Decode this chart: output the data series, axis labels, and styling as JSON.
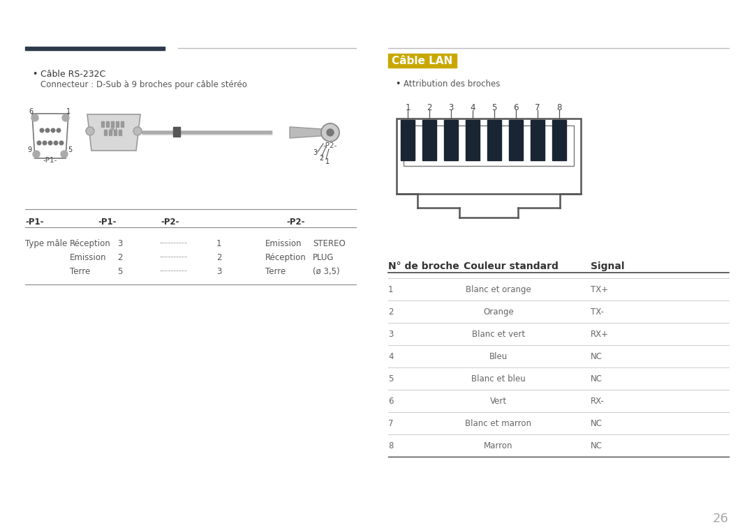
{
  "bg_color": "#ffffff",
  "page_number": "26",
  "top_bar_left_color": "#2d3a4a",
  "top_bar_right_color": "#cccccc",
  "left_section": {
    "bullet_title": "Câble RS-232C",
    "bullet_subtitle": "Connecteur : D-Sub à 9 broches pour câble stéréo",
    "table_header": [
      "-P1-",
      "-P1-",
      "-P2-",
      "-P2-"
    ],
    "table_rows": [
      [
        "Type mâle",
        "Réception",
        "3",
        "----------",
        "1",
        "Emission",
        "STEREO"
      ],
      [
        "",
        "Emission",
        "2",
        "----------",
        "2",
        "Réception",
        "PLUG"
      ],
      [
        "",
        "Terre",
        "5",
        "----------",
        "3",
        "Terre",
        "(ø 3,5)"
      ]
    ]
  },
  "right_section": {
    "title": "Câble LAN",
    "title_bg": "#c8a800",
    "title_color": "#ffffff",
    "bullet": "Attribution des broches",
    "pin_numbers": [
      "1",
      "2",
      "3",
      "4",
      "5",
      "6",
      "7",
      "8"
    ],
    "table_col_headers": [
      "N° de broche",
      "Couleur standard",
      "Signal"
    ],
    "table_rows": [
      [
        "1",
        "Blanc et orange",
        "TX+"
      ],
      [
        "2",
        "Orange",
        "TX-"
      ],
      [
        "3",
        "Blanc et vert",
        "RX+"
      ],
      [
        "4",
        "Bleu",
        "NC"
      ],
      [
        "5",
        "Blanc et bleu",
        "NC"
      ],
      [
        "6",
        "Vert",
        "RX-"
      ],
      [
        "7",
        "Blanc et marron",
        "NC"
      ],
      [
        "8",
        "Marron",
        "NC"
      ]
    ]
  }
}
